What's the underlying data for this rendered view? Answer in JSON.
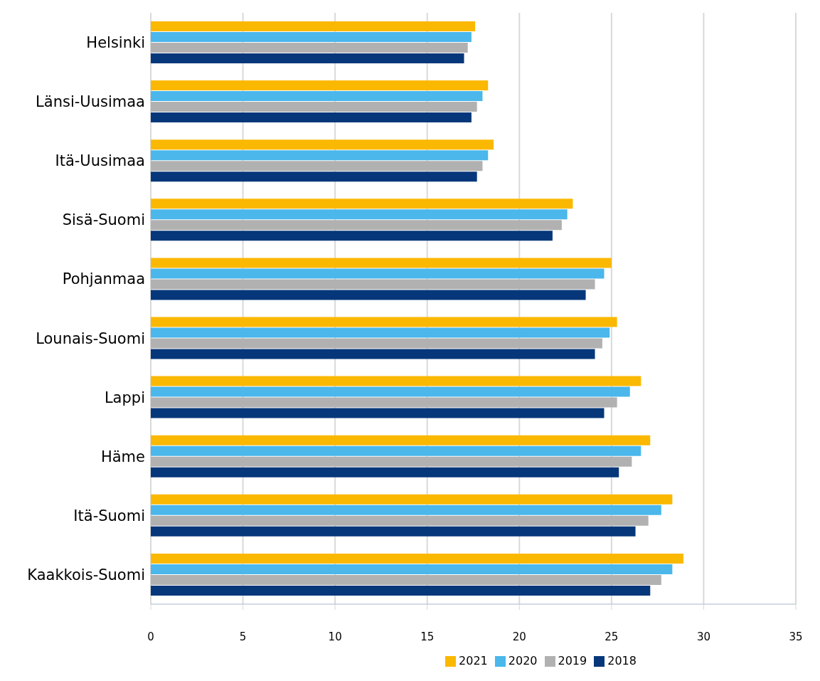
{
  "chart_data": {
    "type": "bar",
    "orientation": "horizontal",
    "categories": [
      "Helsinki",
      "Länsi-Uusimaa",
      "Itä-Uusimaa",
      "Sisä-Suomi",
      "Pohjanmaa",
      "Lounais-Suomi",
      "Lappi",
      "Häme",
      "Itä-Suomi",
      "Kaakkois-Suomi"
    ],
    "series": [
      {
        "name": "2021",
        "color": "#fbb800",
        "values": [
          17.6,
          18.3,
          18.6,
          22.9,
          25.0,
          25.3,
          26.6,
          27.1,
          28.3,
          28.9
        ]
      },
      {
        "name": "2020",
        "color": "#4bb7eb",
        "values": [
          17.4,
          18.0,
          18.3,
          22.6,
          24.6,
          24.9,
          26.0,
          26.6,
          27.7,
          28.3
        ]
      },
      {
        "name": "2019",
        "color": "#b1b1b1",
        "values": [
          17.2,
          17.7,
          18.0,
          22.3,
          24.1,
          24.5,
          25.3,
          26.1,
          27.0,
          27.7
        ]
      },
      {
        "name": "2018",
        "color": "#06377a",
        "values": [
          17.0,
          17.4,
          17.7,
          21.8,
          23.6,
          24.1,
          24.6,
          25.4,
          26.3,
          27.1
        ]
      }
    ],
    "xlim": [
      0,
      35
    ],
    "xticks": [
      0,
      5,
      10,
      15,
      20,
      25,
      30,
      35
    ],
    "grid": "x",
    "legend": "bottom"
  }
}
